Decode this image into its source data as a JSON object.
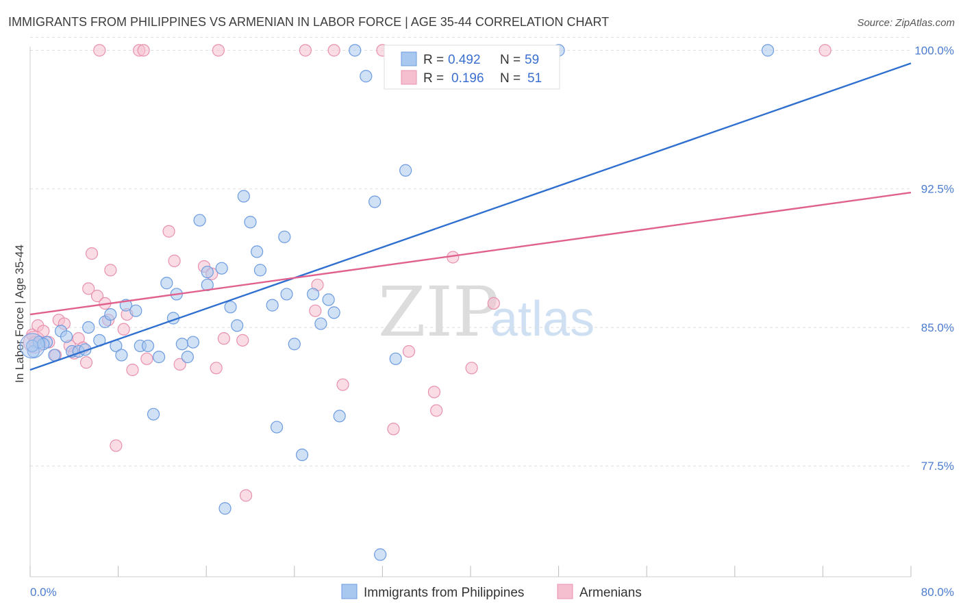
{
  "title": "IMMIGRANTS FROM PHILIPPINES VS ARMENIAN IN LABOR FORCE | AGE 35-44 CORRELATION CHART",
  "source": "Source: ZipAtlas.com",
  "watermark": {
    "zip": "ZIP",
    "atlas": "atlas"
  },
  "colors": {
    "blue_fill": "#a9c8ef",
    "blue_stroke": "#6b9be0",
    "blue_line": "#2f6fd0",
    "pink_fill": "#f6bfd0",
    "pink_stroke": "#e890ae",
    "pink_line": "#e0608e",
    "grid": "#dddddd",
    "tick_text": "#4a7bd0"
  },
  "legend": {
    "rows": [
      {
        "r_label": "R =",
        "r_value": "0.492",
        "n_label": "N =",
        "n_value": "59",
        "color": "blue"
      },
      {
        "r_label": "R =",
        "r_value": "0.196",
        "n_label": "N =",
        "n_value": "51",
        "color": "pink"
      }
    ]
  },
  "chart_data": {
    "type": "scatter",
    "title": "IMMIGRANTS FROM PHILIPPINES VS ARMENIAN IN LABOR FORCE | AGE 35-44 CORRELATION CHART",
    "xlabel": "",
    "ylabel": "In Labor Force | Age 35-44",
    "xlim": [
      0,
      80
    ],
    "ylim": [
      71.5,
      100.5
    ],
    "x_tick_labels": [
      "0.0%",
      "80.0%"
    ],
    "y_ticks": [
      77.5,
      85.0,
      92.5,
      100.0
    ],
    "y_tick_labels": [
      "77.5%",
      "85.0%",
      "92.5%",
      "100.0%"
    ],
    "grid": "horizontal dashed",
    "legend_placement": "bottom",
    "series": [
      {
        "name": "Immigrants from Philippines",
        "color": "blue",
        "trend": {
          "x": [
            0,
            80
          ],
          "y": [
            82.7,
            99.3
          ]
        },
        "points": [
          [
            0.3,
            83.7
          ],
          [
            0.8,
            84.2
          ],
          [
            1.5,
            84.2
          ],
          [
            2.2,
            83.5
          ],
          [
            2.8,
            84.8
          ],
          [
            3.3,
            84.5
          ],
          [
            3.8,
            83.7
          ],
          [
            4.4,
            83.7
          ],
          [
            5.0,
            83.8
          ],
          [
            5.3,
            85.0
          ],
          [
            6.3,
            84.3
          ],
          [
            6.8,
            85.3
          ],
          [
            7.3,
            85.7
          ],
          [
            7.8,
            84.0
          ],
          [
            8.3,
            83.5
          ],
          [
            8.7,
            86.2
          ],
          [
            9.6,
            85.9
          ],
          [
            10.0,
            84.0
          ],
          [
            10.7,
            84.0
          ],
          [
            11.2,
            80.3
          ],
          [
            11.7,
            83.4
          ],
          [
            12.4,
            87.4
          ],
          [
            13.0,
            85.5
          ],
          [
            13.3,
            86.8
          ],
          [
            13.8,
            84.1
          ],
          [
            14.3,
            83.4
          ],
          [
            14.8,
            84.2
          ],
          [
            15.4,
            90.8
          ],
          [
            16.1,
            88.0
          ],
          [
            16.1,
            87.3
          ],
          [
            17.4,
            88.2
          ],
          [
            17.7,
            75.2
          ],
          [
            18.2,
            86.1
          ],
          [
            18.8,
            85.1
          ],
          [
            19.4,
            92.1
          ],
          [
            20.0,
            90.7
          ],
          [
            20.6,
            89.1
          ],
          [
            20.9,
            88.1
          ],
          [
            22.0,
            86.2
          ],
          [
            22.4,
            79.6
          ],
          [
            23.1,
            89.9
          ],
          [
            23.3,
            86.8
          ],
          [
            24.0,
            84.1
          ],
          [
            24.7,
            78.1
          ],
          [
            25.7,
            86.8
          ],
          [
            26.4,
            85.2
          ],
          [
            27.1,
            86.5
          ],
          [
            27.6,
            85.8
          ],
          [
            28.1,
            80.2
          ],
          [
            29.5,
            100.0
          ],
          [
            30.5,
            98.6
          ],
          [
            31.3,
            91.8
          ],
          [
            31.8,
            72.7
          ],
          [
            33.2,
            83.3
          ],
          [
            34.1,
            93.5
          ],
          [
            48.0,
            100.0
          ],
          [
            67.0,
            100.0
          ],
          [
            0.2,
            84.0
          ],
          [
            1.2,
            84.1
          ]
        ]
      },
      {
        "name": "Armenians",
        "color": "pink",
        "trend": {
          "x": [
            0,
            80
          ],
          "y": [
            85.7,
            92.3
          ]
        },
        "points": [
          [
            0.2,
            84.6
          ],
          [
            0.7,
            85.1
          ],
          [
            1.2,
            84.8
          ],
          [
            1.7,
            84.2
          ],
          [
            2.3,
            83.5
          ],
          [
            2.6,
            85.4
          ],
          [
            3.1,
            85.2
          ],
          [
            3.6,
            84.0
          ],
          [
            4.0,
            83.6
          ],
          [
            4.4,
            84.4
          ],
          [
            4.8,
            83.9
          ],
          [
            5.1,
            83.1
          ],
          [
            5.3,
            87.1
          ],
          [
            5.6,
            89.0
          ],
          [
            6.1,
            86.7
          ],
          [
            6.3,
            100.0
          ],
          [
            6.8,
            86.3
          ],
          [
            7.1,
            85.4
          ],
          [
            7.3,
            88.1
          ],
          [
            7.8,
            78.6
          ],
          [
            8.5,
            84.9
          ],
          [
            8.8,
            85.7
          ],
          [
            9.3,
            82.7
          ],
          [
            9.9,
            100.0
          ],
          [
            10.3,
            100.0
          ],
          [
            10.6,
            83.3
          ],
          [
            12.6,
            90.2
          ],
          [
            13.1,
            88.6
          ],
          [
            13.6,
            83.0
          ],
          [
            15.8,
            88.3
          ],
          [
            16.5,
            87.9
          ],
          [
            16.9,
            82.8
          ],
          [
            17.1,
            100.0
          ],
          [
            17.6,
            84.4
          ],
          [
            19.3,
            84.3
          ],
          [
            19.6,
            75.9
          ],
          [
            25.0,
            100.0
          ],
          [
            25.9,
            85.9
          ],
          [
            26.1,
            87.3
          ],
          [
            27.6,
            100.0
          ],
          [
            28.4,
            81.9
          ],
          [
            32.0,
            100.0
          ],
          [
            33.0,
            79.5
          ],
          [
            34.4,
            83.7
          ],
          [
            36.7,
            81.5
          ],
          [
            36.9,
            80.5
          ],
          [
            38.4,
            88.8
          ],
          [
            40.1,
            82.8
          ],
          [
            42.1,
            86.3
          ],
          [
            72.2,
            100.0
          ],
          [
            0.4,
            84.2
          ]
        ]
      }
    ]
  }
}
